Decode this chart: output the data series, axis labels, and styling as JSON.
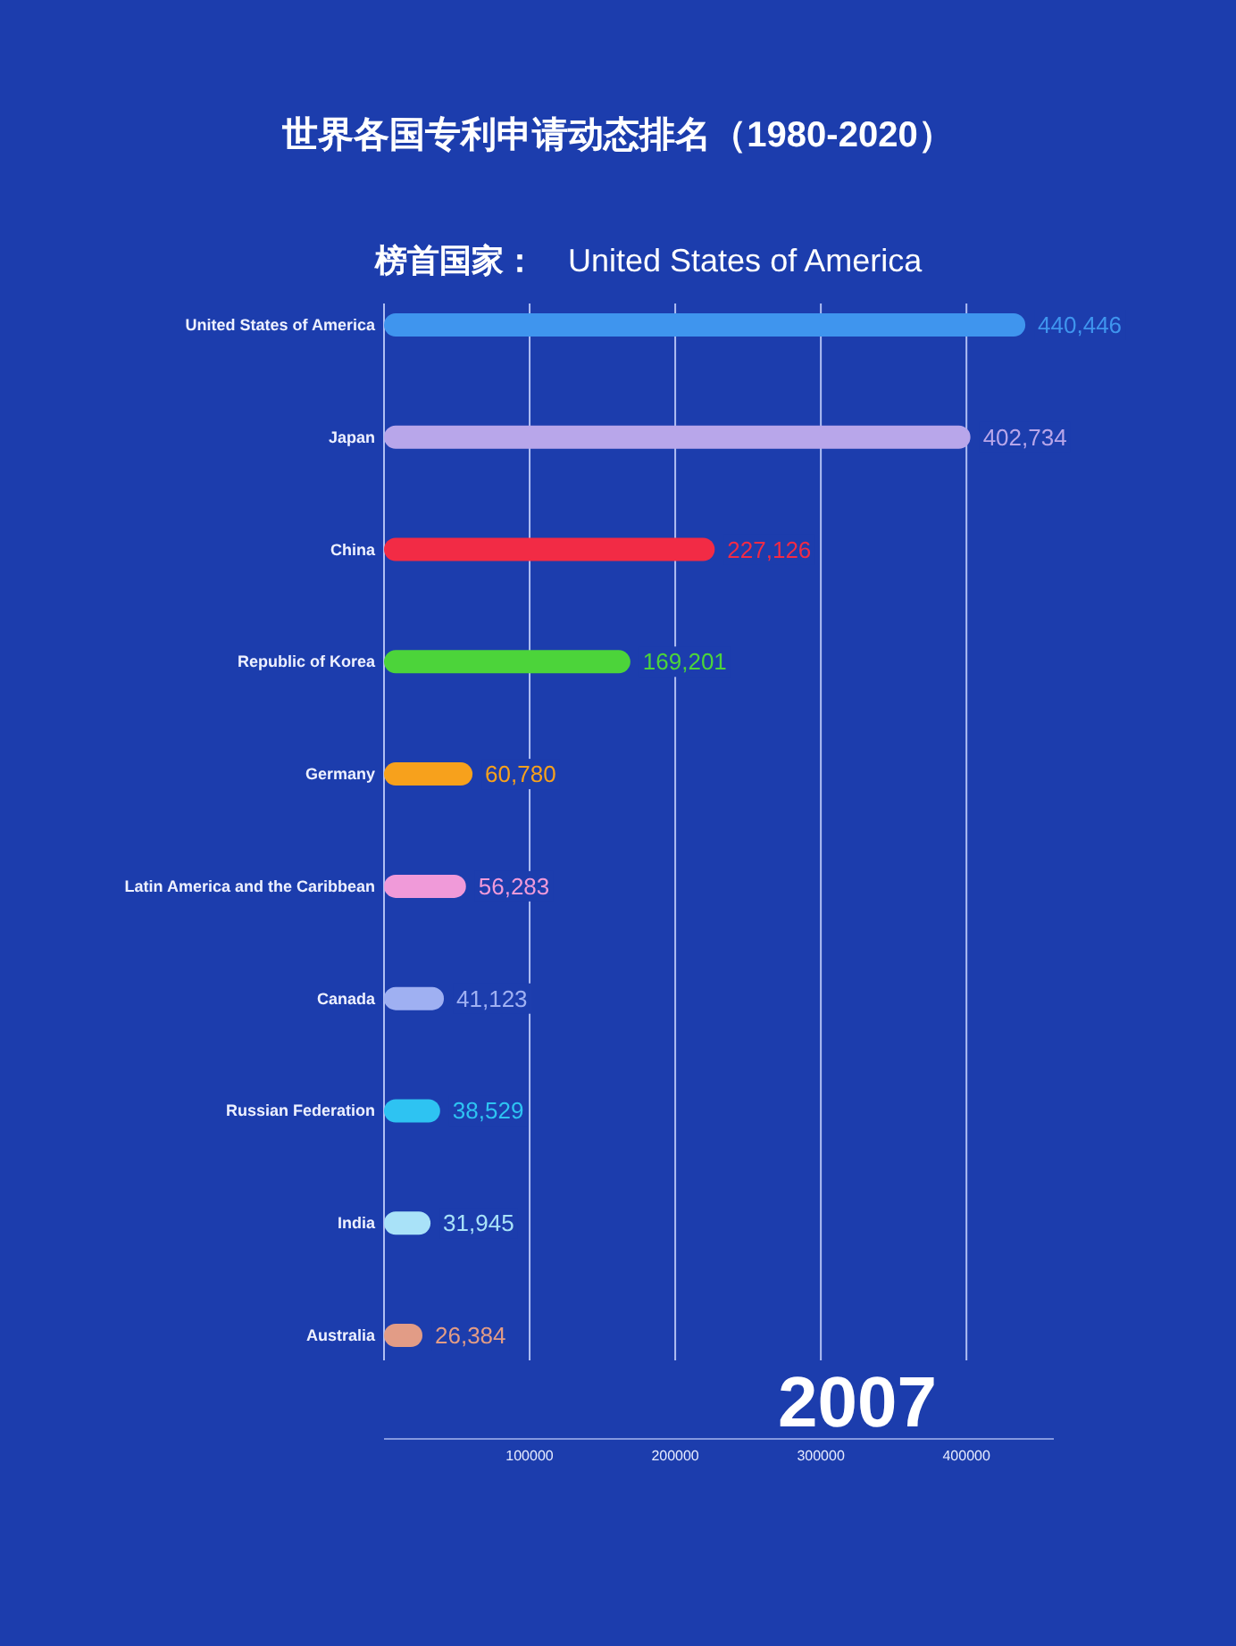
{
  "chart_data": {
    "type": "bar",
    "orientation": "horizontal",
    "title": "世界各国专利申请动态排名（1980-2020）",
    "subtitle": "榜首国家：",
    "annotations": [
      "United States of America",
      "2007"
    ],
    "categories": [
      "United States of America",
      "Japan",
      "China",
      "Republic of Korea",
      "Germany",
      "Latin America and the Caribbean",
      "Canada",
      "Russian Federation",
      "India",
      "Australia"
    ],
    "values": [
      440446,
      402734,
      227126,
      169201,
      60780,
      56283,
      41123,
      38529,
      31945,
      26384
    ],
    "value_labels": [
      "440,446",
      "402,734",
      "227,126",
      "169,201",
      "60,780",
      "56,283",
      "41,123",
      "38,529",
      "31,945",
      "26,384"
    ],
    "colors": [
      "#3f95ee",
      "#b8a6ea",
      "#f22b45",
      "#4cd43a",
      "#f7a11c",
      "#f09ad9",
      "#9fb0f2",
      "#2ec3f2",
      "#a9e2f8",
      "#e29c86"
    ],
    "xlim": [
      0,
      460000
    ],
    "xticks": [
      100000,
      200000,
      300000,
      400000
    ],
    "grid": "x"
  }
}
